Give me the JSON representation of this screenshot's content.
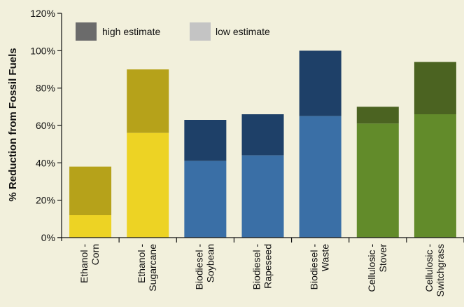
{
  "chart_data": {
    "type": "bar",
    "stacked_overlay": true,
    "ylabel": "% Reduction from Fossil Fuels",
    "ylim": [
      0,
      120
    ],
    "yticks": [
      0,
      20,
      40,
      60,
      80,
      100,
      120
    ],
    "ytick_labels": [
      "0%",
      "20%",
      "40%",
      "60%",
      "80%",
      "100%",
      "120%"
    ],
    "categories": [
      [
        "Ethanol -",
        "Corn"
      ],
      [
        "Ethanol -",
        "Sugarcane"
      ],
      [
        "Biodiesel -",
        "Soybean"
      ],
      [
        "Biodiesel -",
        "Rapeseed"
      ],
      [
        "Biodiesel -",
        "Waste"
      ],
      [
        "Cellulosic -",
        "Stover"
      ],
      [
        "Cellulosic -",
        "Switchgrass"
      ]
    ],
    "series": [
      {
        "name": "low estimate",
        "values": [
          12,
          56,
          41,
          44,
          65,
          61,
          66
        ]
      },
      {
        "name": "high estimate",
        "values": [
          38,
          90,
          63,
          66,
          100,
          70,
          94
        ]
      }
    ],
    "legend": {
      "placement": "top-left",
      "items": [
        {
          "label": "high estimate",
          "swatch_color": "#6b6b6b"
        },
        {
          "label": "low estimate",
          "swatch_color": "#c4c4c4"
        }
      ]
    },
    "bar_colors": {
      "low": [
        "#edd324",
        "#edd324",
        "#3a6fa6",
        "#3a6fa6",
        "#3a6fa6",
        "#628b2a",
        "#628b2a"
      ],
      "high": [
        "#b6a21a",
        "#b6a21a",
        "#1e4068",
        "#1e4068",
        "#1e4068",
        "#4b6321",
        "#4b6321"
      ]
    },
    "background_color": "#f2f0dc",
    "grid": false
  }
}
